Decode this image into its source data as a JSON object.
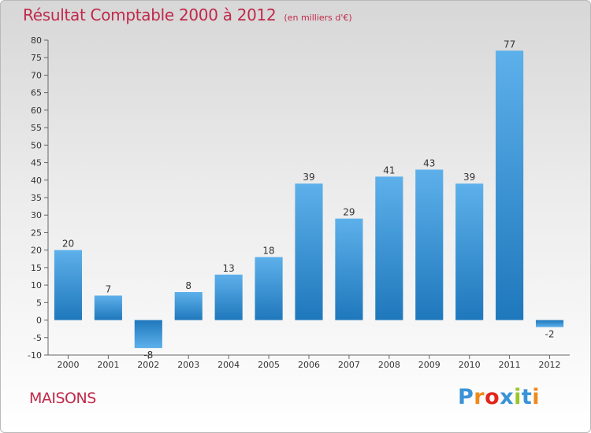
{
  "title": "Résultat Comptable 2000 à 2012",
  "subtitle": "(en milliers d'€)",
  "commune": "MAISONS",
  "logo": {
    "text": "Proxiti",
    "letters": [
      "P",
      "r",
      "o",
      "x",
      "i",
      "t",
      "i"
    ]
  },
  "colors": {
    "title": "#c0294a",
    "bar_light": "#5db0ea",
    "bar_dark": "#1f78bc",
    "axis": "#666666"
  },
  "chart_data": {
    "type": "bar",
    "categories": [
      "2000",
      "2001",
      "2002",
      "2003",
      "2004",
      "2005",
      "2006",
      "2007",
      "2008",
      "2009",
      "2010",
      "2011",
      "2012"
    ],
    "values": [
      20,
      7,
      -8,
      8,
      13,
      18,
      39,
      29,
      41,
      43,
      39,
      77,
      -2
    ],
    "ylim": [
      -10,
      80
    ],
    "yticks": [
      -10,
      -5,
      0,
      5,
      10,
      15,
      20,
      25,
      30,
      35,
      40,
      45,
      50,
      55,
      60,
      65,
      70,
      75,
      80
    ],
    "grid": false,
    "data_labels": true
  }
}
